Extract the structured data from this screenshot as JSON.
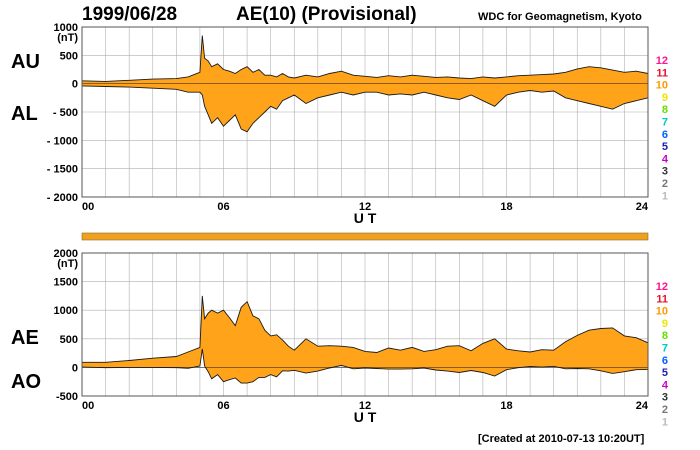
{
  "header": {
    "date": "1999/06/28",
    "title": "AE(10) (Provisional)",
    "source": "WDC for Geomagnetism, Kyoto"
  },
  "footer": {
    "created": "[Created at 2010-07-13 10:20UT]"
  },
  "colors": {
    "fill": "#ffa31a",
    "line": "#1a1a1a",
    "grid": "#b0b0b0",
    "bar": "#f0a020"
  },
  "station_count_labels": [
    {
      "label": "12",
      "color": "#ff1493"
    },
    {
      "label": "11",
      "color": "#e8102a"
    },
    {
      "label": "10",
      "color": "#ff9900"
    },
    {
      "label": "9",
      "color": "#e8e800"
    },
    {
      "label": "8",
      "color": "#66dd00"
    },
    {
      "label": "7",
      "color": "#00c8c8"
    },
    {
      "label": "6",
      "color": "#0060ff"
    },
    {
      "label": "5",
      "color": "#2020b0"
    },
    {
      "label": "4",
      "color": "#cc00cc"
    },
    {
      "label": "3",
      "color": "#333333"
    },
    {
      "label": "2",
      "color": "#777777"
    },
    {
      "label": "1",
      "color": "#bbbbbb"
    }
  ],
  "chart_data": [
    {
      "type": "area",
      "name": "AU/AL",
      "upper_label": "AU",
      "lower_label": "AL",
      "unit": "(nT)",
      "xlabel": "U T",
      "xlim": [
        0,
        24
      ],
      "xticks": [
        "00",
        "06",
        "12",
        "18",
        "24"
      ],
      "ylim": [
        -2000,
        1000
      ],
      "yticks": [
        "1000",
        "500",
        "0",
        "- 500",
        "- 1000",
        "- 1500",
        "- 2000"
      ],
      "grid": true,
      "x": [
        0,
        1,
        2,
        3,
        4,
        4.5,
        5,
        5.1,
        5.2,
        5.35,
        5.5,
        5.75,
        6,
        6.25,
        6.5,
        6.75,
        7,
        7.25,
        7.5,
        7.75,
        8,
        8.25,
        8.5,
        8.75,
        9,
        9.5,
        10,
        10.5,
        11,
        11.5,
        12,
        12.5,
        13,
        13.5,
        14,
        14.5,
        15,
        15.5,
        16,
        16.5,
        17,
        17.5,
        18,
        18.5,
        19,
        19.5,
        20,
        20.5,
        21,
        21.5,
        22,
        22.5,
        23,
        23.5,
        24
      ],
      "series": [
        {
          "values": [
            50,
            40,
            60,
            80,
            90,
            120,
            200,
            850,
            450,
            400,
            300,
            350,
            250,
            220,
            180,
            250,
            300,
            200,
            250,
            150,
            150,
            120,
            180,
            120,
            100,
            150,
            120,
            180,
            220,
            150,
            130,
            110,
            140,
            120,
            150,
            130,
            110,
            120,
            100,
            90,
            120,
            100,
            120,
            140,
            150,
            160,
            170,
            200,
            260,
            300,
            280,
            240,
            200,
            220,
            180
          ]
        },
        {
          "values": [
            -40,
            -50,
            -60,
            -80,
            -100,
            -150,
            -150,
            -200,
            -400,
            -550,
            -700,
            -600,
            -750,
            -650,
            -550,
            -800,
            -850,
            -700,
            -600,
            -500,
            -400,
            -450,
            -300,
            -250,
            -200,
            -350,
            -250,
            -200,
            -150,
            -200,
            -150,
            -150,
            -200,
            -180,
            -200,
            -150,
            -200,
            -250,
            -280,
            -200,
            -300,
            -400,
            -200,
            -150,
            -120,
            -150,
            -130,
            -250,
            -300,
            -350,
            -400,
            -450,
            -350,
            -300,
            -250
          ]
        }
      ]
    },
    {
      "type": "area",
      "name": "AE/AO",
      "upper_label": "AE",
      "lower_label": "AO",
      "unit": "(nT)",
      "xlabel": "U T",
      "xlim": [
        0,
        24
      ],
      "xticks": [
        "00",
        "06",
        "12",
        "18",
        "24"
      ],
      "ylim": [
        -500,
        2000
      ],
      "yticks": [
        "2000",
        "1500",
        "1000",
        "500",
        "0",
        "-500"
      ],
      "grid": true,
      "x": [
        0,
        1,
        2,
        3,
        4,
        4.5,
        5,
        5.1,
        5.2,
        5.35,
        5.5,
        5.75,
        6,
        6.25,
        6.5,
        6.75,
        7,
        7.25,
        7.5,
        7.75,
        8,
        8.25,
        8.5,
        8.75,
        9,
        9.5,
        10,
        10.5,
        11,
        11.5,
        12,
        12.5,
        13,
        13.5,
        14,
        14.5,
        15,
        15.5,
        16,
        16.5,
        17,
        17.5,
        18,
        18.5,
        19,
        19.5,
        20,
        20.5,
        21,
        21.5,
        22,
        22.5,
        23,
        23.5,
        24
      ],
      "series": [
        {
          "values": [
            90,
            90,
            120,
            160,
            190,
            270,
            350,
            1250,
            850,
            950,
            1000,
            950,
            1000,
            870,
            730,
            1050,
            1150,
            900,
            850,
            650,
            550,
            570,
            480,
            370,
            300,
            500,
            370,
            380,
            370,
            350,
            280,
            260,
            340,
            300,
            350,
            280,
            310,
            370,
            380,
            290,
            420,
            500,
            320,
            290,
            270,
            310,
            300,
            450,
            560,
            650,
            680,
            690,
            550,
            520,
            430
          ]
        },
        {
          "values": [
            5,
            -5,
            0,
            0,
            -5,
            -15,
            25,
            325,
            25,
            -75,
            -200,
            -125,
            -250,
            -215,
            -185,
            -275,
            -275,
            -250,
            -175,
            -175,
            -125,
            -165,
            -60,
            -65,
            -50,
            -100,
            -65,
            -10,
            35,
            -25,
            -10,
            -20,
            -30,
            -30,
            -25,
            -10,
            -45,
            -65,
            -90,
            -55,
            -90,
            -150,
            -40,
            -5,
            15,
            5,
            20,
            -25,
            -20,
            -25,
            -60,
            -105,
            -75,
            -40,
            -35
          ]
        }
      ]
    }
  ]
}
